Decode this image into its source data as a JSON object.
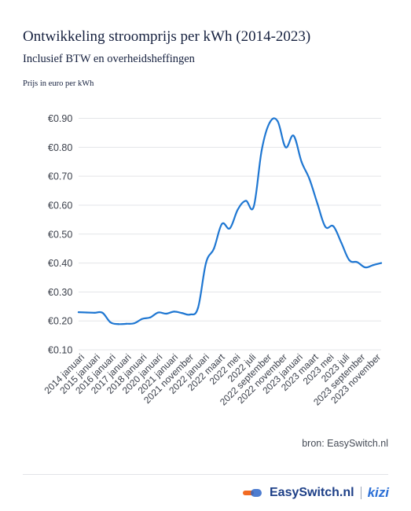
{
  "header": {
    "title": "Ontwikkeling stroomprijs per kWh (2014-2023)",
    "subtitle": "Inclusief BTW en overheidsheffingen",
    "unit_label": "Prijs in euro per kWh"
  },
  "source": "bron: EasySwitch.nl",
  "footer": {
    "brand_name": "EasySwitch.nl",
    "partner_name": "kizi",
    "brand_icon": "easyswitch-logo-icon"
  },
  "colors": {
    "line": "#1f77d2",
    "grid": "#e3e5e8",
    "axis_text": "#3a3f4a"
  },
  "chart_data": {
    "type": "line",
    "title": "Ontwikkeling stroomprijs per kWh (2014-2023)",
    "ylabel": "Prijs in euro per kWh",
    "xlabel": "",
    "ylim": [
      0.1,
      0.9
    ],
    "yticks": [
      0.1,
      0.2,
      0.3,
      0.4,
      0.5,
      0.6,
      0.7,
      0.8,
      0.9
    ],
    "ytick_labels": [
      "€0.10",
      "€0.20",
      "€0.30",
      "€0.40",
      "€0.50",
      "€0.60",
      "€0.70",
      "€0.80",
      "€0.90"
    ],
    "grid": true,
    "x_labels": [
      "2014 januari",
      "2015 januari",
      "2016 januari",
      "2017 januari",
      "2018 januari",
      "2020 januari",
      "2021 januari",
      "2021 november",
      "2022 januari",
      "2022 maart",
      "2022 mei",
      "2022 juli",
      "2022 september",
      "2022 november",
      "2023 januari",
      "2023 maart",
      "2023 mei",
      "2023 juli",
      "2023 september",
      "2023 november"
    ],
    "x_points": [
      "2014 januari",
      "2014 juli",
      "2015 januari",
      "2015 juli",
      "2016 januari",
      "2016 juli",
      "2017 januari",
      "2017 juli",
      "2018 januari",
      "2018 juli",
      "2020 januari",
      "2020 juli",
      "2021 januari",
      "2021 juli",
      "2021 november",
      "2021 december",
      "2022 januari",
      "2022 februari",
      "2022 maart",
      "2022 april",
      "2022 mei",
      "2022 juni",
      "2022 juli",
      "2022 augustus",
      "2022 september",
      "2022 oktober",
      "2022 november",
      "2022 december",
      "2023 januari",
      "2023 februari",
      "2023 maart",
      "2023 april",
      "2023 mei",
      "2023 juni",
      "2023 juli",
      "2023 augustus",
      "2023 september",
      "2023 oktober",
      "2023 november"
    ],
    "series": [
      {
        "values": [
          0.23,
          0.229,
          0.228,
          0.228,
          0.195,
          0.189,
          0.19,
          0.192,
          0.207,
          0.212,
          0.229,
          0.225,
          0.232,
          0.227,
          0.222,
          0.245,
          0.4,
          0.45,
          0.535,
          0.52,
          0.585,
          0.615,
          0.595,
          0.79,
          0.885,
          0.89,
          0.8,
          0.84,
          0.75,
          0.69,
          0.605,
          0.525,
          0.527,
          0.47,
          0.41,
          0.403,
          0.385,
          0.393,
          0.4
        ]
      }
    ]
  }
}
